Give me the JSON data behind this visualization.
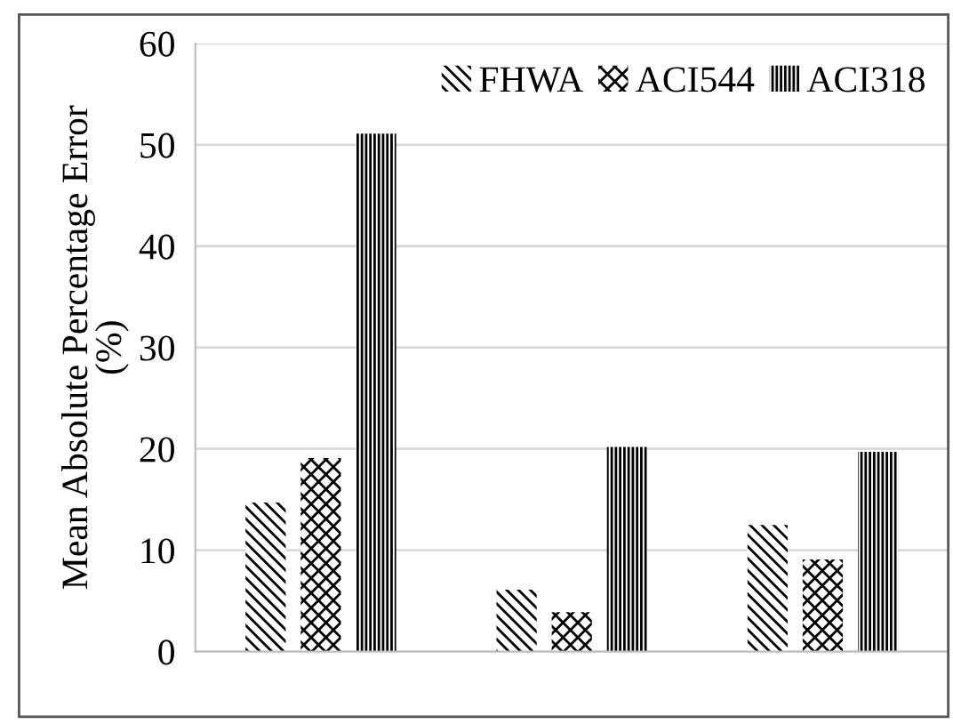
{
  "chart_data": {
    "type": "bar",
    "ylabel": "Mean Absolute Percentage Error\n(%)",
    "categories": [
      null,
      null,
      null
    ],
    "series": [
      {
        "name": "FHWA",
        "color": "#000000",
        "values": [
          14.7,
          6.1,
          12.5
        ]
      },
      {
        "name": "ACI544",
        "color": "#000000",
        "values": [
          19.1,
          3.9,
          9.1
        ]
      },
      {
        "name": "ACI318",
        "color": "#000000",
        "values": [
          51.1,
          20.2,
          19.7
        ]
      }
    ],
    "ylim": [
      0,
      60
    ],
    "yticks": [
      0,
      10,
      20,
      30,
      40,
      50,
      60
    ],
    "grid": "y",
    "legend": "top right"
  }
}
